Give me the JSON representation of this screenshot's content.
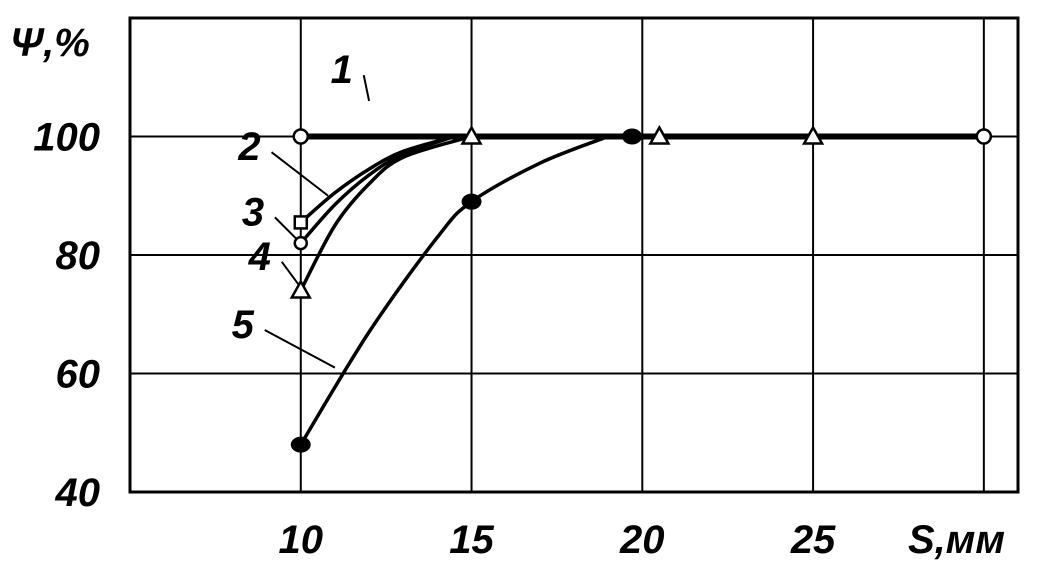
{
  "chart_data": {
    "type": "line",
    "xlabel": "S,мм",
    "ylabel": "Ψ,%",
    "xlim": [
      5,
      31
    ],
    "ylim": [
      40,
      120
    ],
    "x_ticks": [
      "10",
      "15",
      "20",
      "25"
    ],
    "y_ticks": [
      "40",
      "60",
      "80",
      "100"
    ],
    "grid": true,
    "series": [
      {
        "name": "1",
        "marker": "open-circle",
        "points": [
          [
            10,
            100
          ],
          [
            30,
            100
          ]
        ]
      },
      {
        "name": "2",
        "marker": "open-square",
        "points": [
          [
            10,
            85.5
          ],
          [
            11,
            90.5
          ],
          [
            12,
            94.5
          ],
          [
            13,
            97.5
          ],
          [
            14.5,
            100
          ]
        ]
      },
      {
        "name": "3",
        "marker": "open-circle-small",
        "points": [
          [
            10,
            82
          ],
          [
            11,
            88.5
          ],
          [
            12,
            93.5
          ],
          [
            13,
            97
          ],
          [
            14.5,
            100
          ]
        ]
      },
      {
        "name": "4",
        "marker": "open-triangle",
        "points": [
          [
            10,
            74
          ],
          [
            11,
            85
          ],
          [
            12,
            92
          ],
          [
            13,
            96.5
          ],
          [
            15,
            100
          ]
        ]
      },
      {
        "name": "5",
        "marker": "filled-circle",
        "points": [
          [
            10,
            48
          ],
          [
            12,
            67
          ],
          [
            14,
            83
          ],
          [
            15,
            89
          ],
          [
            17,
            95.5
          ],
          [
            19,
            100
          ]
        ]
      }
    ],
    "markers": [
      {
        "shape": "open-circle",
        "x": 10,
        "y": 100
      },
      {
        "shape": "open-square",
        "x": 10,
        "y": 85.5
      },
      {
        "shape": "open-circle-small",
        "x": 10,
        "y": 82
      },
      {
        "shape": "open-triangle",
        "x": 10,
        "y": 74
      },
      {
        "shape": "filled-circle",
        "x": 10,
        "y": 48
      },
      {
        "shape": "filled-circle",
        "x": 15,
        "y": 89
      },
      {
        "shape": "open-triangle",
        "x": 15,
        "y": 100
      },
      {
        "shape": "filled-circle",
        "x": 19.7,
        "y": 100
      },
      {
        "shape": "open-triangle",
        "x": 20.5,
        "y": 100
      },
      {
        "shape": "open-triangle",
        "x": 25,
        "y": 100
      },
      {
        "shape": "open-circle",
        "x": 30,
        "y": 100
      }
    ],
    "curve_labels": [
      {
        "text": "1",
        "ax": 12,
        "ay": 106,
        "tx": 11.2,
        "ty": 109
      },
      {
        "text": "2",
        "ax": 10.8,
        "ay": 90,
        "tx": 8.5,
        "ty": 96
      },
      {
        "text": "3",
        "ax": 10,
        "ay": 82,
        "tx": 8.6,
        "ty": 85
      },
      {
        "text": "4",
        "ax": 10,
        "ay": 74.5,
        "tx": 8.8,
        "ty": 77.5
      },
      {
        "text": "5",
        "ax": 11,
        "ay": 61,
        "tx": 8.3,
        "ty": 66
      }
    ]
  }
}
